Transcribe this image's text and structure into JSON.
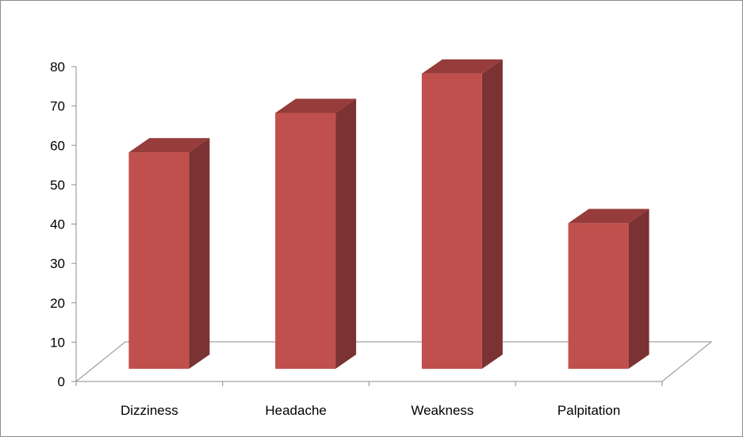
{
  "chart_data": {
    "type": "bar",
    "style": "3d-column",
    "categories": [
      "Dizziness",
      "Headache",
      "Weakness",
      "Palpitation"
    ],
    "values": [
      55,
      65,
      75,
      37
    ],
    "ylim": [
      0,
      80
    ],
    "yticks": [
      0,
      10,
      20,
      30,
      40,
      50,
      60,
      70,
      80
    ],
    "grid": false,
    "legend": "none",
    "colors": {
      "bar_front": "#c0504d",
      "bar_side": "#7a3232",
      "bar_top": "#963c3a",
      "axis": "#8c8c8c"
    }
  }
}
